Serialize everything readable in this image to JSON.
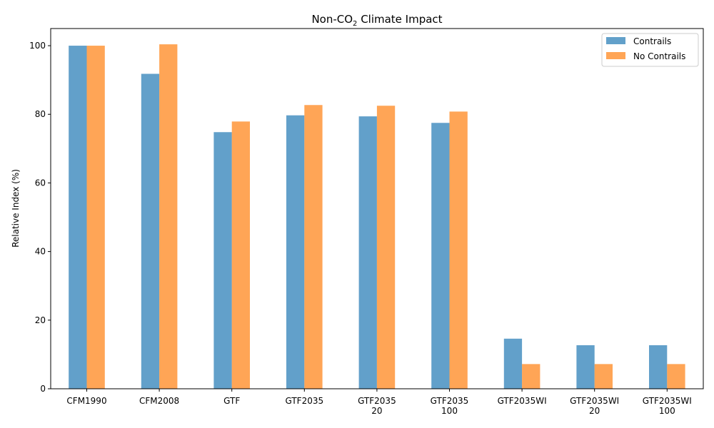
{
  "chart_data": {
    "type": "bar",
    "title": "Non-CO",
    "title_subscript": "2",
    "title_suffix": " Climate Impact",
    "xlabel": "",
    "ylabel": "Relative Index (%)",
    "ylim": [
      0,
      105
    ],
    "yticks": [
      0,
      20,
      40,
      60,
      80,
      100
    ],
    "grid": false,
    "legend_position": "top-right",
    "categories": [
      [
        "CFM1990"
      ],
      [
        "CFM2008"
      ],
      [
        "GTF"
      ],
      [
        "GTF2035"
      ],
      [
        "GTF2035",
        "20"
      ],
      [
        "GTF2035",
        "100"
      ],
      [
        "GTF2035WI"
      ],
      [
        "GTF2035WI",
        "20"
      ],
      [
        "GTF2035WI",
        "100"
      ]
    ],
    "series": [
      {
        "name": "Contrails",
        "color": "#1f77b4",
        "values": [
          100,
          91.8,
          74.8,
          79.7,
          79.4,
          77.5,
          14.6,
          12.7,
          12.7
        ]
      },
      {
        "name": "No Contrails",
        "color": "#ff7f0e",
        "values": [
          100,
          100.4,
          77.9,
          82.7,
          82.5,
          80.8,
          7.2,
          7.2,
          7.2
        ]
      }
    ]
  }
}
